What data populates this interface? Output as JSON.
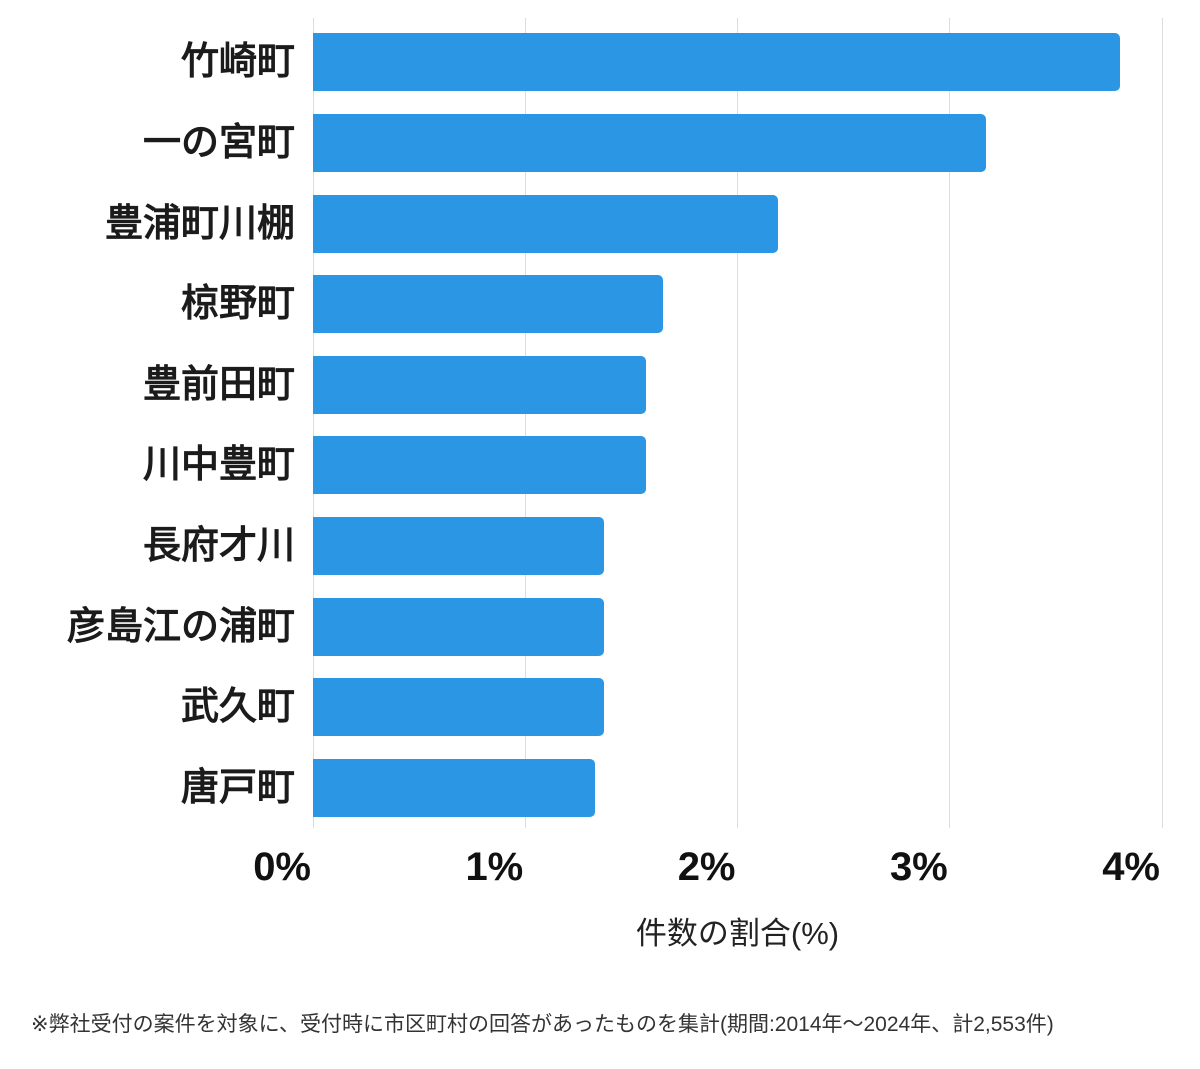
{
  "chart_data": {
    "type": "bar",
    "orientation": "horizontal",
    "categories": [
      "竹崎町",
      "一の宮町",
      "豊浦町川棚",
      "椋野町",
      "豊前田町",
      "川中豊町",
      "長府才川",
      "彦島江の浦町",
      "武久町",
      "唐戸町"
    ],
    "values": [
      3.8,
      3.17,
      2.19,
      1.65,
      1.57,
      1.57,
      1.37,
      1.37,
      1.37,
      1.33
    ],
    "xlabel": "件数の割合(%)",
    "xlim": [
      0,
      4
    ],
    "tick_values": [
      0,
      1,
      2,
      3,
      4
    ],
    "tick_labels": [
      "0%",
      "1%",
      "2%",
      "3%",
      "4%"
    ],
    "grid": true,
    "legend": false
  },
  "colors": {
    "bar": "#2B96E3",
    "grid": "#DCDCDC",
    "category_label": "#1B1B1B",
    "tick_label": "#111111",
    "axis_title": "#222222",
    "footnote": "#333333"
  },
  "footnote": "※弊社受付の案件を対象に、受付時に市区町村の回答があったものを集計(期間:2014年〜2024年、計2,553件)"
}
